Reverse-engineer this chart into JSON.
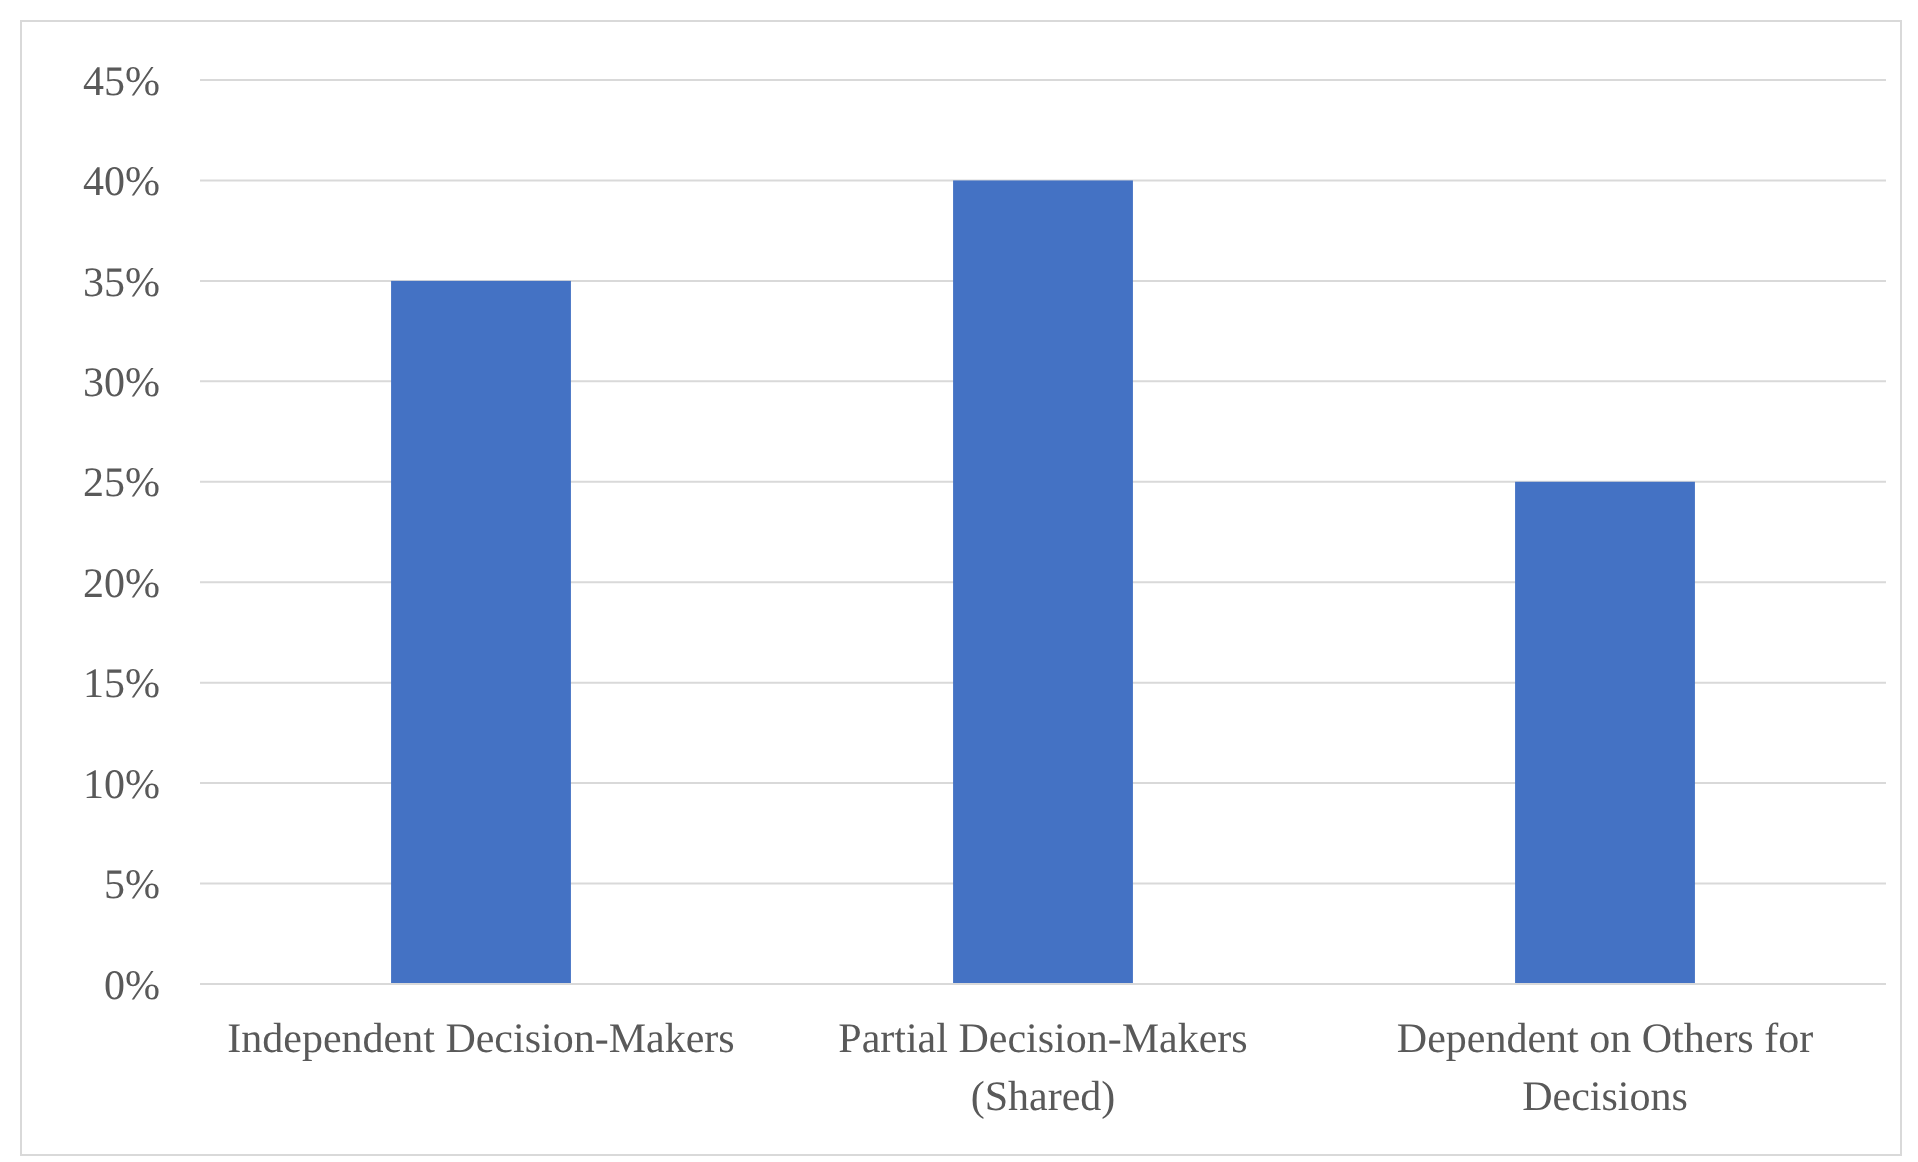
{
  "chart_data": {
    "type": "bar",
    "categories": [
      "Independent Decision-Makers",
      "Partial Decision-Makers (Shared)",
      "Dependent on Others for Decisions"
    ],
    "values": [
      35,
      40,
      25
    ],
    "color": "#4472c4",
    "ylim": [
      0,
      45
    ],
    "yticks": [
      {
        "value": 0,
        "label": "0%"
      },
      {
        "value": 5,
        "label": "5%"
      },
      {
        "value": 10,
        "label": "10%"
      },
      {
        "value": 15,
        "label": "15%"
      },
      {
        "value": 20,
        "label": "20%"
      },
      {
        "value": 25,
        "label": "25%"
      },
      {
        "value": 30,
        "label": "30%"
      },
      {
        "value": 35,
        "label": "35%"
      },
      {
        "value": 40,
        "label": "40%"
      },
      {
        "value": 45,
        "label": "45%"
      }
    ],
    "grid": "y"
  }
}
